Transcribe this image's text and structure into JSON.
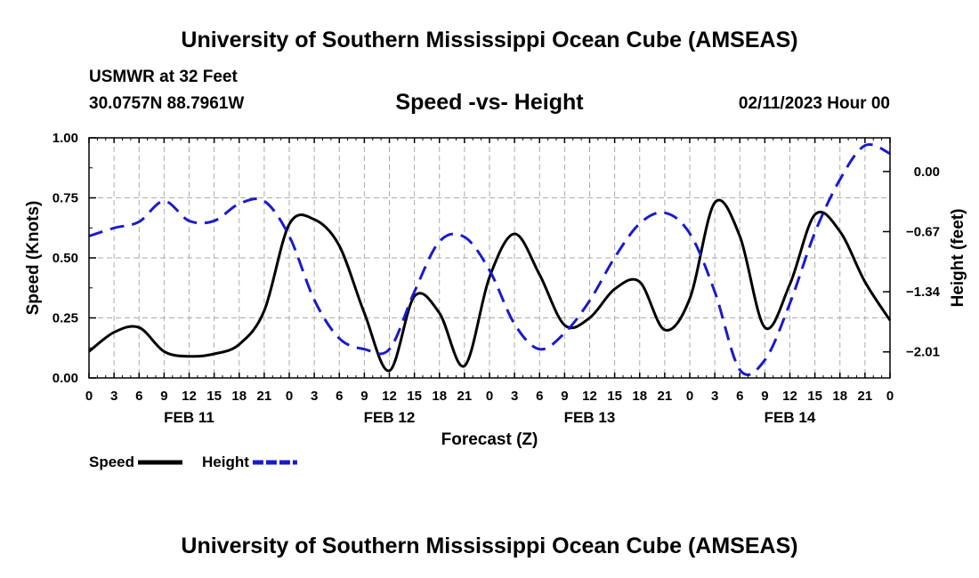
{
  "header": {
    "title": "University of Southern Mississippi Ocean Cube (AMSEAS)",
    "station": "USMWR at 32 Feet",
    "coordinates": "30.0757N  88.7961W",
    "subtitle": "Speed -vs- Height",
    "datetime": "02/11/2023 Hour 00"
  },
  "footer": {
    "title": "University of Southern Mississippi Ocean Cube (AMSEAS)"
  },
  "chart_data": {
    "type": "line",
    "title": "Speed -vs- Height",
    "xlabel": "Forecast (Z)",
    "ylabel": "Speed (Knots)",
    "y2label": "Height (feet)",
    "xlim": [
      0,
      96
    ],
    "ylim": [
      0,
      1
    ],
    "y2lim": [
      -2.3,
      0.375
    ],
    "grid": true,
    "legend_position": "bottom-left",
    "x_ticks": [
      0,
      3,
      6,
      9,
      12,
      15,
      18,
      21,
      24,
      27,
      30,
      33,
      36,
      39,
      42,
      45,
      48,
      51,
      54,
      57,
      60,
      63,
      66,
      69,
      72,
      75,
      78,
      81,
      84,
      87,
      90,
      93,
      96
    ],
    "x_tick_labels": [
      "0",
      "3",
      "6",
      "9",
      "12",
      "15",
      "18",
      "21",
      "0",
      "3",
      "6",
      "9",
      "12",
      "15",
      "18",
      "21",
      "0",
      "3",
      "6",
      "9",
      "12",
      "15",
      "18",
      "21",
      "0",
      "3",
      "6",
      "9",
      "12",
      "15",
      "18",
      "21",
      "0"
    ],
    "date_labels": [
      {
        "x": 12,
        "label": "FEB 11"
      },
      {
        "x": 36,
        "label": "FEB 12"
      },
      {
        "x": 60,
        "label": "FEB 13"
      },
      {
        "x": 84,
        "label": "FEB 14"
      }
    ],
    "y_ticks": [
      0,
      0.25,
      0.5,
      0.75,
      1.0
    ],
    "y_tick_labels": [
      "0.00",
      "0.25",
      "0.50",
      "0.75",
      "1.00"
    ],
    "y2_ticks": [
      0,
      -0.67,
      -1.34,
      -2.01
    ],
    "y2_tick_labels": [
      "0.00",
      "−0.67",
      "−1.34",
      "−2.01"
    ],
    "series": [
      {
        "name": "Speed",
        "axis": "left",
        "color": "#000000",
        "style": "solid",
        "x": [
          0,
          3,
          6,
          9,
          12,
          15,
          18,
          21,
          24,
          27,
          30,
          33,
          36,
          39,
          42,
          45,
          48,
          51,
          54,
          57,
          60,
          63,
          66,
          69,
          72,
          75,
          78,
          81,
          84,
          87,
          90,
          93,
          96
        ],
        "values": [
          0.11,
          0.19,
          0.21,
          0.11,
          0.09,
          0.1,
          0.14,
          0.28,
          0.64,
          0.66,
          0.55,
          0.27,
          0.03,
          0.34,
          0.27,
          0.05,
          0.42,
          0.6,
          0.43,
          0.22,
          0.25,
          0.37,
          0.4,
          0.2,
          0.33,
          0.73,
          0.59,
          0.21,
          0.39,
          0.68,
          0.61,
          0.4,
          0.24
        ]
      },
      {
        "name": "Height",
        "axis": "right",
        "color": "#1a1acc",
        "style": "dashed",
        "x": [
          0,
          3,
          6,
          9,
          12,
          15,
          18,
          21,
          24,
          27,
          30,
          33,
          36,
          39,
          42,
          45,
          48,
          51,
          54,
          57,
          60,
          63,
          66,
          69,
          72,
          75,
          78,
          81,
          84,
          87,
          90,
          93,
          96
        ],
        "values": [
          -0.72,
          -0.63,
          -0.56,
          -0.33,
          -0.55,
          -0.55,
          -0.36,
          -0.33,
          -0.72,
          -1.43,
          -1.86,
          -1.98,
          -1.98,
          -1.34,
          -0.78,
          -0.73,
          -1.1,
          -1.7,
          -1.98,
          -1.8,
          -1.44,
          -0.96,
          -0.58,
          -0.46,
          -0.69,
          -1.34,
          -2.21,
          -2.1,
          -1.47,
          -0.68,
          -0.09,
          0.29,
          0.2
        ]
      }
    ]
  }
}
